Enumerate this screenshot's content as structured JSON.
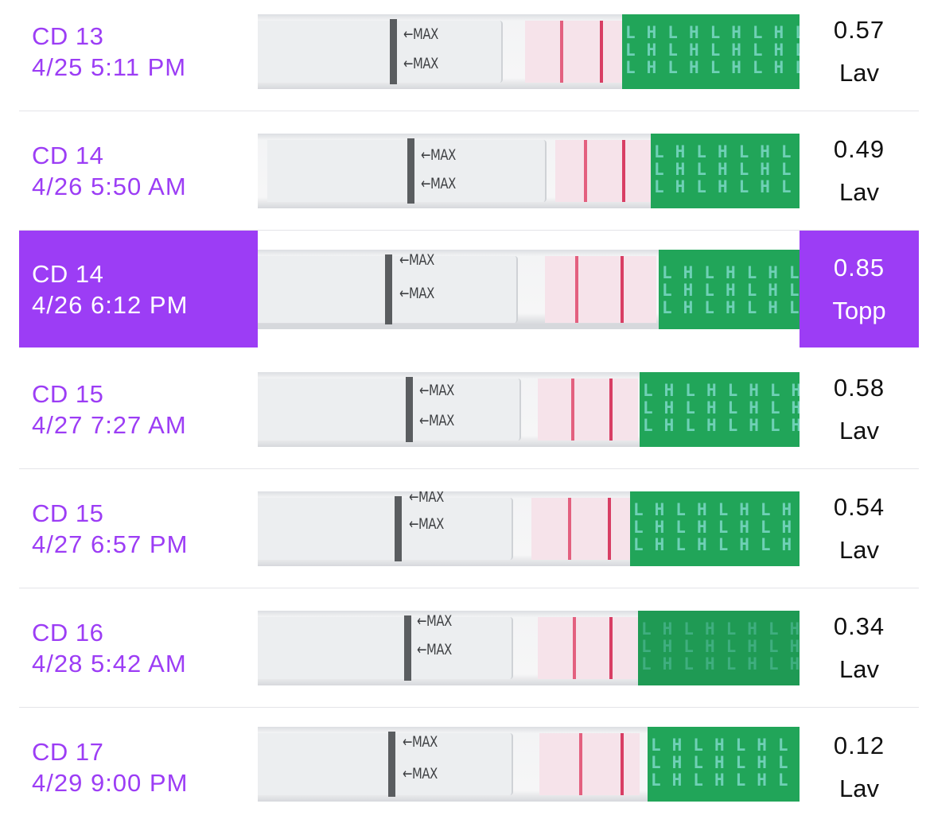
{
  "tests": [
    {
      "cd": "CD 13",
      "datetime": "4/25 5:11 PM",
      "value": "0.57",
      "level": "Lav",
      "selected": false
    },
    {
      "cd": "CD 14",
      "datetime": "4/26 5:50 AM",
      "value": "0.49",
      "level": "Lav",
      "selected": false
    },
    {
      "cd": "CD 14",
      "datetime": "4/26 6:12 PM",
      "value": "0.85",
      "level": "Topp",
      "selected": true
    },
    {
      "cd": "CD 15",
      "datetime": "4/27 7:27 AM",
      "value": "0.58",
      "level": "Lav",
      "selected": false
    },
    {
      "cd": "CD 15",
      "datetime": "4/27 6:57 PM",
      "value": "0.54",
      "level": "Lav",
      "selected": false
    },
    {
      "cd": "CD 16",
      "datetime": "4/28 5:42 AM",
      "value": "0.34",
      "level": "Lav",
      "selected": false
    },
    {
      "cd": "CD 17",
      "datetime": "4/29 9:00 PM",
      "value": "0.12",
      "level": "Lav",
      "selected": false
    }
  ],
  "strip_labels": {
    "max": "←MAX",
    "lh": "LH"
  },
  "colors": {
    "accent": "#9c3df5",
    "strip_green": "#21a559",
    "test_line": "#d83e64"
  }
}
